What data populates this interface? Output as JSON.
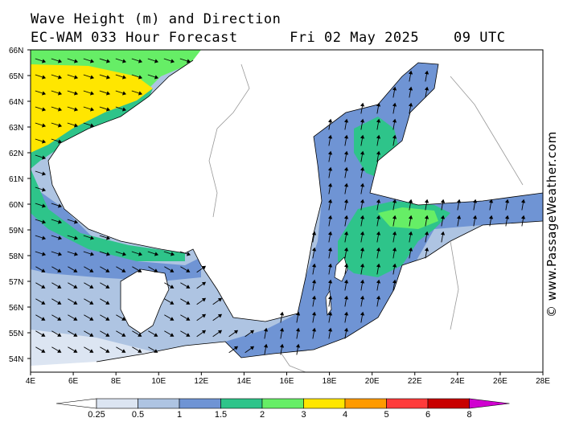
{
  "header": {
    "title": "Wave Height (m) and Direction",
    "forecast": "EC-WAM 033 Hour Forecast",
    "date": "Fri 02 May 2025",
    "time": "09 UTC"
  },
  "credit": "© www.PassageWeather.com",
  "map": {
    "latitude_labels": [
      "66N",
      "65N",
      "64N",
      "63N",
      "62N",
      "61N",
      "60N",
      "59N",
      "58N",
      "57N",
      "56N",
      "55N",
      "54N"
    ],
    "longitude_labels": [
      "4E",
      "6E",
      "8E",
      "10E",
      "12E",
      "14E",
      "16E",
      "18E",
      "20E",
      "22E",
      "24E",
      "26E",
      "28E"
    ],
    "lat_range": [
      53.7,
      66
    ],
    "lon_range": [
      4,
      28
    ]
  },
  "legend": {
    "labels": [
      "0.25",
      "0.5",
      "1",
      "1.5",
      "2",
      "3",
      "4",
      "5",
      "6",
      "8"
    ],
    "colors": [
      "#ffffff",
      "#dce5f2",
      "#aec4e2",
      "#6f94d4",
      "#2ec48a",
      "#66ee66",
      "#ffe600",
      "#ff9a00",
      "#ff3b3b",
      "#c80000",
      "#d000d0"
    ]
  }
}
